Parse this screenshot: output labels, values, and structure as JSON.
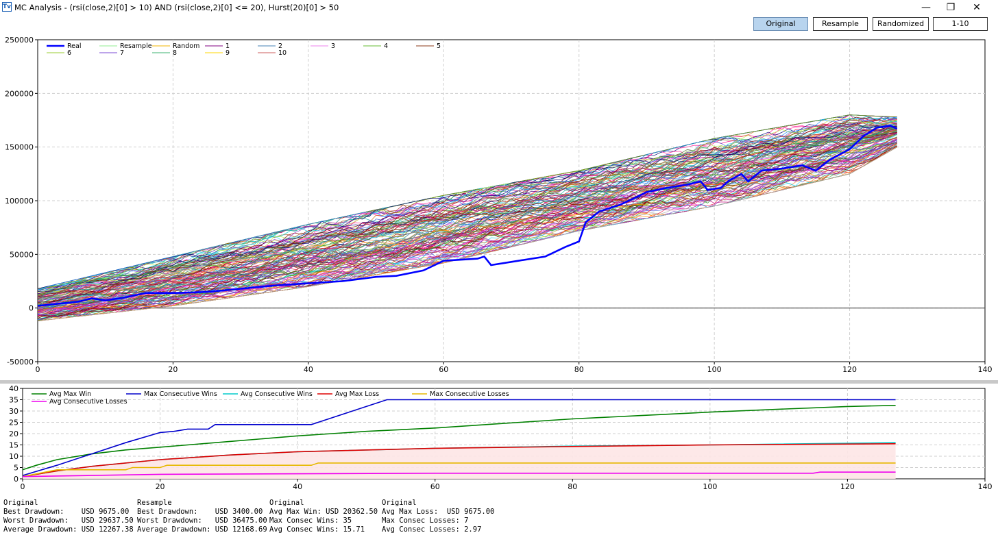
{
  "window": {
    "title": "MC Analysis - (rsi(close,2)[0] > 10) AND (rsi(close,2)[0] <= 20), Hurst(20)[0] > 50",
    "app_icon": "Tv",
    "controls": {
      "minimize": "—",
      "restore": "❐",
      "close": "✕"
    }
  },
  "toolbar": {
    "buttons": [
      {
        "label": "Original",
        "active": true
      },
      {
        "label": "Resample",
        "active": false
      },
      {
        "label": "Randomized",
        "active": false
      },
      {
        "label": "1-10",
        "active": false
      }
    ]
  },
  "chart_data": [
    {
      "type": "line",
      "title": "",
      "xlim": [
        0,
        140
      ],
      "ylim": [
        -50000,
        250000
      ],
      "xticks": [
        0,
        20,
        40,
        60,
        80,
        100,
        120,
        140
      ],
      "yticks": [
        -50000,
        0,
        50000,
        100000,
        150000,
        200000,
        250000
      ],
      "grid": true,
      "legend_position": "top-left",
      "legend": [
        {
          "name": "Real",
          "color": "#0000ff"
        },
        {
          "name": "Resample",
          "color": "#90ee90"
        },
        {
          "name": "Random",
          "color": "#f0b400"
        },
        {
          "name": "1",
          "color": "#800080"
        },
        {
          "name": "2",
          "color": "#4682b4"
        },
        {
          "name": "3",
          "color": "#ee82ee"
        },
        {
          "name": "4",
          "color": "#66bb33"
        },
        {
          "name": "5",
          "color": "#8b3a1a"
        },
        {
          "name": "6",
          "color": "#9acd32"
        },
        {
          "name": "7",
          "color": "#7b4bd6"
        },
        {
          "name": "8",
          "color": "#3cb371"
        },
        {
          "name": "9",
          "color": "#ffd700"
        },
        {
          "name": "10",
          "color": "#cd5c5c"
        }
      ],
      "simulation_band": {
        "x_end": 127,
        "lower": [
          [
            0,
            -12000
          ],
          [
            20,
            2000
          ],
          [
            40,
            20000
          ],
          [
            60,
            42000
          ],
          [
            80,
            72000
          ],
          [
            100,
            95000
          ],
          [
            120,
            125000
          ],
          [
            127,
            150000
          ]
        ],
        "upper": [
          [
            0,
            18000
          ],
          [
            20,
            48000
          ],
          [
            40,
            78000
          ],
          [
            60,
            105000
          ],
          [
            80,
            128000
          ],
          [
            100,
            158000
          ],
          [
            120,
            180000
          ],
          [
            127,
            178000
          ]
        ]
      },
      "series": [
        {
          "name": "Real",
          "color": "#0000ff",
          "points": [
            [
              0,
              2000
            ],
            [
              3,
              4000
            ],
            [
              6,
              6000
            ],
            [
              8,
              9000
            ],
            [
              10,
              7000
            ],
            [
              13,
              10000
            ],
            [
              16,
              14000
            ],
            [
              20,
              14000
            ],
            [
              25,
              15000
            ],
            [
              30,
              18000
            ],
            [
              35,
              21000
            ],
            [
              40,
              23000
            ],
            [
              45,
              25000
            ],
            [
              50,
              29000
            ],
            [
              53,
              30000
            ],
            [
              57,
              35000
            ],
            [
              60,
              44000
            ],
            [
              65,
              46000
            ],
            [
              66,
              48000
            ],
            [
              67,
              40000
            ],
            [
              70,
              43000
            ],
            [
              75,
              48000
            ],
            [
              78,
              57000
            ],
            [
              80,
              62000
            ],
            [
              81,
              80000
            ],
            [
              83,
              90000
            ],
            [
              86,
              96000
            ],
            [
              90,
              108000
            ],
            [
              93,
              112000
            ],
            [
              96,
              115000
            ],
            [
              98,
              118000
            ],
            [
              99,
              110000
            ],
            [
              101,
              112000
            ],
            [
              102,
              118000
            ],
            [
              104,
              125000
            ],
            [
              105,
              118000
            ],
            [
              107,
              128000
            ],
            [
              110,
              130000
            ],
            [
              113,
              133000
            ],
            [
              115,
              128000
            ],
            [
              117,
              138000
            ],
            [
              120,
              148000
            ],
            [
              122,
              160000
            ],
            [
              124,
              168000
            ],
            [
              126,
              170000
            ],
            [
              127,
              167000
            ]
          ]
        }
      ]
    },
    {
      "type": "line",
      "title": "",
      "xlim": [
        0,
        140
      ],
      "ylim": [
        0,
        40
      ],
      "xticks": [
        0,
        20,
        40,
        60,
        80,
        100,
        120,
        140
      ],
      "yticks": [
        0,
        5,
        10,
        15,
        20,
        25,
        30,
        35,
        40
      ],
      "grid": true,
      "legend_position": "top-left",
      "series": [
        {
          "name": "Avg Max Win",
          "color": "#008000",
          "points": [
            [
              0,
              4
            ],
            [
              2,
              6
            ],
            [
              5,
              8.5
            ],
            [
              10,
              11
            ],
            [
              15,
              12.8
            ],
            [
              20,
              14
            ],
            [
              30,
              16.5
            ],
            [
              40,
              19
            ],
            [
              50,
              21
            ],
            [
              60,
              22.5
            ],
            [
              70,
              24.5
            ],
            [
              80,
              26.5
            ],
            [
              90,
              28
            ],
            [
              100,
              29.5
            ],
            [
              110,
              30.8
            ],
            [
              120,
              32
            ],
            [
              127,
              32.5
            ]
          ]
        },
        {
          "name": "Max Consecutive Wins",
          "color": "#0000cc",
          "points": [
            [
              0,
              1.5
            ],
            [
              5,
              6
            ],
            [
              10,
              11
            ],
            [
              15,
              16
            ],
            [
              20,
              20.5
            ],
            [
              22,
              21
            ],
            [
              24,
              22
            ],
            [
              27,
              22
            ],
            [
              28,
              24
            ],
            [
              42,
              24
            ],
            [
              45,
              27
            ],
            [
              50,
              32
            ],
            [
              53,
              35
            ],
            [
              127,
              35
            ]
          ]
        },
        {
          "name": "Avg Consecutive Wins",
          "color": "#00cccc",
          "points": [
            [
              0,
              1
            ],
            [
              5,
              3.5
            ],
            [
              10,
              5.5
            ],
            [
              20,
              8.5
            ],
            [
              30,
              10.5
            ],
            [
              40,
              12
            ],
            [
              60,
              13.5
            ],
            [
              80,
              14.5
            ],
            [
              100,
              15
            ],
            [
              127,
              16
            ]
          ]
        },
        {
          "name": "Avg Max Loss",
          "color": "#dd0000",
          "points": [
            [
              0,
              1
            ],
            [
              5,
              3.5
            ],
            [
              10,
              5.5
            ],
            [
              20,
              8.5
            ],
            [
              30,
              10.5
            ],
            [
              40,
              12
            ],
            [
              60,
              13.5
            ],
            [
              80,
              14.3
            ],
            [
              100,
              15
            ],
            [
              127,
              15.5
            ]
          ]
        },
        {
          "name": "Max Consecutive Losses",
          "color": "#e6b800",
          "points": [
            [
              0,
              1
            ],
            [
              5,
              4
            ],
            [
              15,
              4
            ],
            [
              16,
              5
            ],
            [
              20,
              5
            ],
            [
              21,
              6
            ],
            [
              42,
              6
            ],
            [
              43,
              7
            ],
            [
              127,
              7
            ]
          ]
        },
        {
          "name": "Avg Consecutive Losses",
          "color": "#ee00ee",
          "points": [
            [
              0,
              1
            ],
            [
              10,
              1.5
            ],
            [
              20,
              2
            ],
            [
              60,
              2.5
            ],
            [
              115,
              2.5
            ],
            [
              116,
              2.97
            ],
            [
              127,
              2.97
            ]
          ]
        }
      ]
    }
  ],
  "stats": [
    {
      "header": "Original",
      "lines": [
        "Best Drawdown:    USD 9675.00",
        "Worst Drawdown:   USD 29637.50",
        "Average Drawdown: USD 12267.38"
      ]
    },
    {
      "header": "Resample",
      "lines": [
        "Best Drawdown:    USD 3400.00",
        "Worst Drawdown:   USD 36475.00",
        "Average Drawdown: USD 12168.69"
      ]
    },
    {
      "header": "Original",
      "lines": [
        "Avg Max Win: USD 20362.50",
        "Max Consec Wins: 35",
        "Avg Consec Wins: 15.71"
      ]
    },
    {
      "header": "Original",
      "lines": [
        "Avg Max Loss:  USD 9675.00",
        "Max Consec Losses: 7",
        "Avg Consec Losses: 2.97"
      ]
    }
  ]
}
